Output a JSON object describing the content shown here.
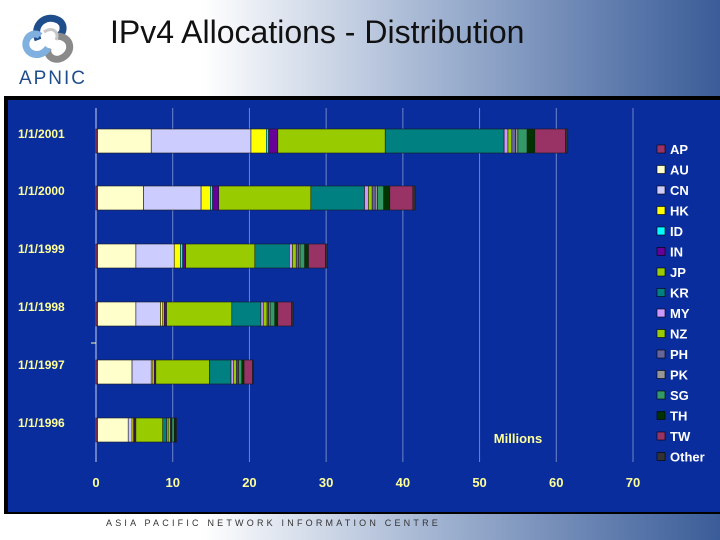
{
  "header": {
    "title": "IPv4 Allocations - Distribution",
    "logo_text": "APNIC"
  },
  "footer": {
    "text": "ASIA PACIFIC NETWORK INFORMATION CENTRE"
  },
  "chart_data": {
    "type": "bar",
    "orientation": "horizontal",
    "stacked": true,
    "title": "IPv4 Allocations - Distribution",
    "xlabel": "Millions",
    "xlim": [
      0,
      70
    ],
    "xticks": [
      0,
      10,
      20,
      30,
      40,
      50,
      60,
      70
    ],
    "grid": true,
    "legend_position": "right",
    "categories": [
      "1/1/2001",
      "1/1/2000",
      "1/1/1999",
      "1/1/1998",
      "1/1/1997",
      "1/1/1996"
    ],
    "series": [
      {
        "name": "AP",
        "color": "#993366",
        "values": [
          0.2,
          0.2,
          0.2,
          0.2,
          0.2,
          0.2
        ]
      },
      {
        "name": "AU",
        "color": "#ffffcc",
        "values": [
          7,
          6,
          5,
          5,
          4.5,
          4
        ]
      },
      {
        "name": "CN",
        "color": "#ccccff",
        "values": [
          13,
          7.5,
          5,
          3.2,
          2.5,
          0.5
        ]
      },
      {
        "name": "HK",
        "color": "#ffff00",
        "values": [
          2,
          1.2,
          0.8,
          0.3,
          0.2,
          0.2
        ]
      },
      {
        "name": "ID",
        "color": "#00ffff",
        "values": [
          0.3,
          0.3,
          0.3,
          0.2,
          0.2,
          0.1
        ]
      },
      {
        "name": "IN",
        "color": "#660099",
        "values": [
          1.2,
          0.8,
          0.4,
          0.3,
          0.2,
          0.2
        ]
      },
      {
        "name": "JP",
        "color": "#99cc00",
        "values": [
          14,
          12,
          9,
          8.5,
          7,
          3.5
        ]
      },
      {
        "name": "KR",
        "color": "#008080",
        "values": [
          15.5,
          7,
          4.5,
          3.8,
          2.8,
          0.5
        ]
      },
      {
        "name": "MY",
        "color": "#cc99ff",
        "values": [
          0.5,
          0.5,
          0.4,
          0.3,
          0.3,
          0.2
        ]
      },
      {
        "name": "NZ",
        "color": "#99cc00",
        "values": [
          0.5,
          0.5,
          0.5,
          0.5,
          0.4,
          0.3
        ]
      },
      {
        "name": "PH",
        "color": "#666699",
        "values": [
          0.5,
          0.4,
          0.3,
          0.2,
          0.2,
          0.1
        ]
      },
      {
        "name": "PK",
        "color": "#969696",
        "values": [
          0.3,
          0.3,
          0.2,
          0.2,
          0.1,
          0.1
        ]
      },
      {
        "name": "SG",
        "color": "#339966",
        "values": [
          1.2,
          0.8,
          0.6,
          0.6,
          0.4,
          0.3
        ]
      },
      {
        "name": "TH",
        "color": "#003300",
        "values": [
          1,
          0.8,
          0.5,
          0.4,
          0.3,
          0.2
        ]
      },
      {
        "name": "TW",
        "color": "#993366",
        "values": [
          4,
          3,
          2.2,
          1.8,
          1.1,
          0
        ]
      },
      {
        "name": "Other",
        "color": "#333333",
        "values": [
          0.3,
          0.3,
          0.3,
          0.2,
          0.1,
          0.1
        ]
      }
    ]
  }
}
